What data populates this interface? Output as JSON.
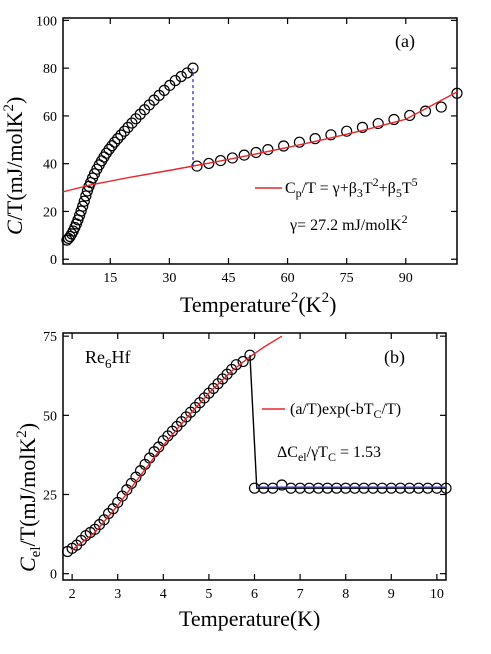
{
  "panels": {
    "a": {
      "label": "(a)",
      "xtitle": {
        "main": "Temperature",
        "sup": "2",
        "paren": "(K",
        "sup2": "2",
        "close": ")"
      },
      "ytitle": {
        "italic": "C",
        "rest": "/T(mJ/molK",
        "sup": "2",
        "close": ")"
      },
      "legend": {
        "part1": "C",
        "sub1": "p",
        "part2": "/T = γ+β",
        "sub2": "3",
        "part3": "T",
        "sup1": "2",
        "part4": "+β",
        "sub3": "5",
        "part5": "T",
        "sup2": "5"
      },
      "gamma_text": "γ= 27.2 mJ/molK",
      "gamma_sup": "2"
    },
    "b": {
      "label": "(b)",
      "compound": {
        "main": "Re",
        "sub": "6",
        "rest": "Hf"
      },
      "xtitle": "Temperature(K)",
      "ytitle": {
        "italic": "C",
        "sub": "el",
        "rest": "/T(mJ/molK",
        "sup": "2",
        "close": ")"
      },
      "legend": {
        "text": "(a/T)exp(-bT",
        "sub": "C",
        "close": "/T)"
      },
      "ratio": {
        "d": "ΔC",
        "sub1": "el",
        "mid": "/γT",
        "sub2": "C",
        "val": " = 1.53"
      }
    }
  },
  "chart_data": [
    {
      "type": "scatter",
      "xlim": [
        3,
        103
      ],
      "ylim": [
        -2,
        101
      ],
      "xticks": [
        15,
        30,
        45,
        60,
        75,
        90
      ],
      "yticks": [
        0,
        20,
        40,
        60,
        80,
        100
      ],
      "series": [
        {
          "marker": "open-circle",
          "color": "#000000",
          "x": [
            4.0,
            4.4,
            4.8,
            5.2,
            5.6,
            6.0,
            6.4,
            6.8,
            7.2,
            7.6,
            8.0,
            8.4,
            8.8,
            9.2,
            9.6,
            10.0,
            10.5,
            11.0,
            11.6,
            12.2,
            12.8,
            13.4,
            14.0,
            14.7,
            15.4,
            16.1,
            16.9,
            17.7,
            18.6,
            19.5,
            20.5,
            21.5,
            22.6,
            23.7,
            24.9,
            26.1,
            27.4,
            28.7,
            30.1,
            31.5,
            33.0,
            34.5,
            36.0
          ],
          "y": [
            8,
            8.7,
            9.5,
            10.6,
            11.8,
            13.3,
            14.8,
            16.5,
            18.3,
            20.2,
            22.2,
            24.3,
            26.5,
            28.6,
            30.5,
            32.1,
            34.0,
            35.8,
            37.7,
            39.5,
            41.2,
            42.8,
            44.4,
            46.0,
            47.5,
            49.0,
            50.5,
            52.0,
            53.6,
            55.2,
            57.0,
            58.8,
            60.7,
            62.6,
            64.6,
            66.6,
            68.6,
            70.7,
            72.8,
            74.8,
            76.5,
            78.0,
            80.0
          ]
        },
        {
          "marker": "open-circle",
          "color": "#000000",
          "x": [
            37,
            40,
            43,
            46,
            49,
            52,
            55,
            59,
            63,
            67,
            71,
            75,
            79,
            83,
            87,
            91,
            95,
            99,
            103
          ],
          "y": [
            39,
            40.1,
            41.3,
            42.4,
            43.6,
            44.7,
            45.9,
            47.4,
            49.0,
            50.5,
            52.1,
            53.6,
            55.2,
            56.8,
            58.5,
            60.2,
            62.0,
            63.7,
            69.5
          ]
        },
        {
          "type": "line",
          "name": "fit",
          "color": "#e8262d",
          "x": [
            3,
            10,
            20,
            30,
            40,
            50,
            60,
            70,
            80,
            90,
            103
          ],
          "y": [
            28.2,
            31.1,
            34.3,
            37.2,
            40.2,
            43.4,
            46.8,
            50.4,
            54.3,
            58.6,
            70.0
          ]
        },
        {
          "type": "line",
          "name": "jump",
          "color": "#3c3cc8",
          "dashed": true,
          "x": [
            36,
            36
          ],
          "y": [
            39,
            80
          ]
        }
      ]
    },
    {
      "type": "scatter",
      "xlim": [
        1.8,
        10.2
      ],
      "ylim": [
        -2,
        76
      ],
      "xticks": [
        2,
        3,
        4,
        5,
        6,
        7,
        8,
        9,
        10
      ],
      "yticks": [
        0,
        25,
        50,
        75
      ],
      "series": [
        {
          "marker": "open-circle",
          "color": "#000000",
          "x": [
            1.9,
            2.0,
            2.1,
            2.2,
            2.3,
            2.4,
            2.5,
            2.6,
            2.7,
            2.8,
            2.9,
            3.0,
            3.1,
            3.2,
            3.3,
            3.4,
            3.5,
            3.6,
            3.7,
            3.8,
            3.9,
            4.0,
            4.1,
            4.2,
            4.3,
            4.4,
            4.5,
            4.6,
            4.7,
            4.8,
            4.9,
            5.0,
            5.1,
            5.2,
            5.3,
            5.4,
            5.5,
            5.6,
            5.75,
            5.9
          ],
          "y": [
            7,
            8,
            9,
            10.5,
            12,
            13,
            14,
            15.5,
            17,
            19,
            20.5,
            22.5,
            24.5,
            26.5,
            28.5,
            30.5,
            32.5,
            34.5,
            36.5,
            38.5,
            40,
            42,
            43.5,
            45,
            46.5,
            48,
            49.5,
            51,
            52.5,
            54,
            55.5,
            57,
            58.5,
            60,
            61.5,
            63,
            64.5,
            66,
            67,
            69
          ]
        },
        {
          "marker": "open-circle",
          "color": "#000000",
          "x": [
            6.0,
            6.2,
            6.4,
            6.6,
            6.8,
            7.0,
            7.2,
            7.4,
            7.6,
            7.8,
            8.0,
            8.2,
            8.4,
            8.6,
            8.8,
            9.0,
            9.2,
            9.4,
            9.6,
            9.8,
            10.0,
            10.2
          ],
          "y": [
            27,
            27,
            27,
            28,
            27,
            27,
            27,
            27,
            27,
            27,
            27,
            27,
            27,
            27,
            27,
            27,
            27,
            27,
            27,
            27,
            27,
            27
          ]
        },
        {
          "type": "line",
          "name": "(a/T)exp(-bT_C/T)",
          "color": "#e8262d",
          "x": [
            2.0,
            2.5,
            3.0,
            3.5,
            4.0,
            4.5,
            5.0,
            5.5,
            5.9,
            6.2,
            6.6
          ],
          "y": [
            7.5,
            13,
            21.5,
            31,
            40.5,
            49,
            57,
            64,
            68.5,
            71.5,
            75
          ]
        },
        {
          "type": "line",
          "name": "step",
          "color": "#000000",
          "x": [
            5.9,
            6.05,
            10.2
          ],
          "y": [
            69,
            27,
            27
          ]
        },
        {
          "type": "line",
          "name": "normal",
          "color": "#3c3cc8",
          "x": [
            6.05,
            10.2
          ],
          "y": [
            27.3,
            27.3
          ]
        }
      ]
    }
  ]
}
